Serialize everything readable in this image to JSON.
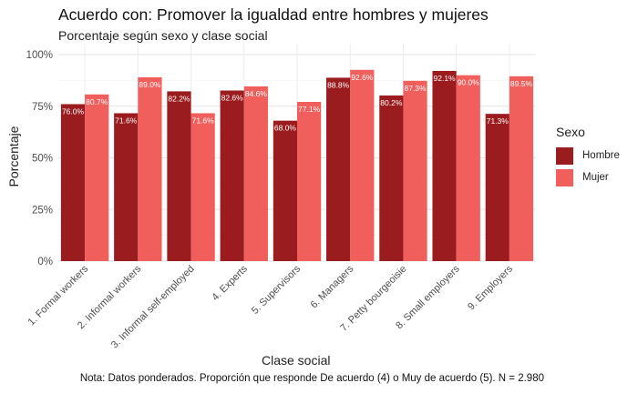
{
  "chart_data": {
    "type": "bar",
    "title": "Acuerdo con: Promover la igualdad entre hombres y mujeres",
    "subtitle": "Porcentaje según sexo y clase social",
    "xlabel": "Clase social",
    "ylabel": "Porcentaje",
    "caption": "Nota: Datos ponderados. Proporción que responde De acuerdo (4) o Muy de acuerdo (5). N = 2.980",
    "ylim": [
      0,
      100
    ],
    "yticks": [
      "0%",
      "25%",
      "50%",
      "75%",
      "100%"
    ],
    "grid": true,
    "legend_position": "right",
    "legend_title": "Sexo",
    "categories": [
      "1. Formal workers",
      "2. Informal workers",
      "3. Informal self-employed",
      "4. Experts",
      "5. Supervisors",
      "6. Managers",
      "7. Petty bourgeoisie",
      "8. Small employers",
      "9. Employers"
    ],
    "series": [
      {
        "name": "Hombre",
        "color": "#9b1c1f",
        "values": [
          76.0,
          71.6,
          82.2,
          82.6,
          68.0,
          88.8,
          80.2,
          92.1,
          71.3
        ],
        "labels": [
          "76.0%",
          "71.6%",
          "82.2%",
          "82.6%",
          "68.0%",
          "88.8%",
          "80.2%",
          "92.1%",
          "71.3%"
        ]
      },
      {
        "name": "Mujer",
        "color": "#f15f5d",
        "values": [
          80.7,
          89.0,
          71.6,
          84.6,
          77.1,
          92.6,
          87.3,
          90.0,
          89.5
        ],
        "labels": [
          "80.7%",
          "89.0%",
          "71.6%",
          "84.6%",
          "77.1%",
          "92.6%",
          "87.3%",
          "90.0%",
          "89.5%"
        ]
      }
    ]
  }
}
